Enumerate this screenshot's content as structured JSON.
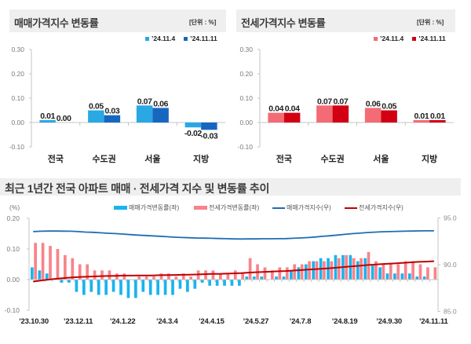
{
  "chart_data": [
    {
      "type": "bar",
      "title": "매매가격지수 변동률",
      "unit_label": "[단위 : %]",
      "categories": [
        "전국",
        "수도권",
        "서울",
        "지방"
      ],
      "series": [
        {
          "name": "’24.11.4",
          "color": "#29a8e4",
          "values": [
            0.01,
            0.05,
            0.07,
            -0.02
          ],
          "data_labels": [
            "0.01",
            "0.05",
            "0.07",
            "-0.02"
          ]
        },
        {
          "name": "’24.11.11",
          "color": "#1767c1",
          "values": [
            0.0,
            0.03,
            0.06,
            -0.03
          ],
          "data_labels": [
            "0.00",
            "0.03",
            "0.06",
            "-0.03"
          ]
        }
      ],
      "xlabel": "",
      "ylabel": "",
      "ylim": [
        -0.1,
        0.3
      ],
      "yticks": [
        0.3,
        0.2,
        0.1,
        0.0,
        -0.1
      ],
      "ytick_labels": [
        "0.30",
        "0.20",
        "0.10",
        "0.00",
        "-0.10"
      ],
      "grid": false,
      "legend": "top-right"
    },
    {
      "type": "bar",
      "title": "전세가격지수 변동률",
      "unit_label": "[단위 : %]",
      "categories": [
        "전국",
        "수도권",
        "서울",
        "지방"
      ],
      "series": [
        {
          "name": "’24.11.4",
          "color": "#f36b74",
          "values": [
            0.04,
            0.07,
            0.06,
            0.01
          ],
          "data_labels": [
            "0.04",
            "0.07",
            "0.06",
            "0.01"
          ]
        },
        {
          "name": "’24.11.11",
          "color": "#d20012",
          "values": [
            0.04,
            0.07,
            0.05,
            0.01
          ],
          "data_labels": [
            "0.04",
            "0.07",
            "0.05",
            "0.01"
          ]
        }
      ],
      "xlabel": "",
      "ylabel": "",
      "ylim": [
        -0.1,
        0.3
      ],
      "yticks": [
        0.3,
        0.2,
        0.1,
        0.0,
        -0.1
      ],
      "ytick_labels": [
        "0.30",
        "0.20",
        "0.10",
        "0.00",
        "-0.10"
      ],
      "grid": false,
      "legend": "top-right"
    },
    {
      "type": "bar+line",
      "title": "최근 1년간 전국 아파트 매매 · 전세가격 지수 및 변동률 추이",
      "y_unit_label": "(%)",
      "xlabel": "",
      "x_tick_labels": [
        "’23.10.30",
        "’23.12.11",
        "’24.1.22",
        "’24.3.4",
        "’24.4.15",
        "’24.5.27",
        "’24.7.8",
        "’24.8.19",
        "’24.9.30",
        "’24.11.11"
      ],
      "x_tick_index": [
        0,
        6,
        12,
        18,
        24,
        30,
        36,
        42,
        48,
        54
      ],
      "ylim_left": [
        -0.1,
        0.2
      ],
      "yticks_left": [
        0.2,
        0.1,
        0.0,
        -0.1
      ],
      "ytick_labels_left": [
        "0.20",
        "0.10",
        "0.00",
        "-0.10"
      ],
      "ylim_right": [
        85.0,
        95.0
      ],
      "yticks_right": [
        95.0,
        90.0,
        85.0
      ],
      "ytick_labels_right": [
        "95.0",
        "90.0",
        "85.0"
      ],
      "grid": false,
      "legend": "top-center",
      "series": [
        {
          "name": "매매가격변동률(좌)",
          "kind": "bar",
          "axis": "left",
          "color": "#19b3ef",
          "values": [
            0.04,
            0.03,
            0.02,
            0.0,
            -0.01,
            -0.01,
            -0.04,
            -0.05,
            -0.04,
            -0.05,
            -0.05,
            -0.04,
            -0.05,
            -0.06,
            -0.06,
            -0.04,
            -0.05,
            -0.05,
            -0.05,
            -0.05,
            -0.03,
            -0.04,
            -0.03,
            -0.01,
            -0.02,
            -0.02,
            -0.02,
            -0.02,
            -0.02,
            0.01,
            0.01,
            0.01,
            0.0,
            0.01,
            0.01,
            0.03,
            0.04,
            0.05,
            0.06,
            0.07,
            0.07,
            0.08,
            0.08,
            0.08,
            0.06,
            0.07,
            0.05,
            0.04,
            0.02,
            0.02,
            0.02,
            0.02,
            0.01,
            0.01,
            0.0
          ]
        },
        {
          "name": "전세가격변동률(좌)",
          "kind": "bar",
          "axis": "left",
          "color": "#f8838a",
          "values": [
            0.12,
            0.12,
            0.11,
            0.1,
            0.08,
            0.07,
            0.05,
            0.05,
            0.03,
            0.03,
            0.03,
            0.02,
            0.02,
            0.0,
            0.01,
            0.01,
            0.01,
            0.02,
            0.02,
            0.01,
            0.02,
            0.01,
            0.03,
            0.03,
            0.03,
            0.02,
            0.02,
            0.03,
            0.02,
            0.07,
            0.05,
            0.04,
            0.03,
            0.04,
            0.04,
            0.05,
            0.05,
            0.06,
            0.06,
            0.06,
            0.06,
            0.07,
            0.08,
            0.07,
            0.07,
            0.09,
            0.06,
            0.05,
            0.05,
            0.05,
            0.06,
            0.06,
            0.05,
            0.04,
            0.04
          ]
        },
        {
          "name": "매매가격지수(우)",
          "kind": "line",
          "axis": "right",
          "color": "#1f6db3",
          "values": [
            93.55,
            93.58,
            93.6,
            93.6,
            93.59,
            93.58,
            93.54,
            93.49,
            93.46,
            93.41,
            93.36,
            93.33,
            93.28,
            93.22,
            93.17,
            93.13,
            93.08,
            93.04,
            92.99,
            92.94,
            92.91,
            92.88,
            92.85,
            92.84,
            92.82,
            92.8,
            92.78,
            92.76,
            92.75,
            92.76,
            92.76,
            92.77,
            92.77,
            92.78,
            92.79,
            92.82,
            92.86,
            92.9,
            92.96,
            93.03,
            93.09,
            93.17,
            93.24,
            93.32,
            93.37,
            93.44,
            93.48,
            93.52,
            93.54,
            93.56,
            93.58,
            93.6,
            93.61,
            93.62,
            93.62
          ]
        },
        {
          "name": "전세가격지수(우)",
          "kind": "line",
          "axis": "right",
          "color": "#c00000",
          "values": [
            88.2,
            88.31,
            88.4,
            88.49,
            88.56,
            88.62,
            88.67,
            88.71,
            88.74,
            88.77,
            88.79,
            88.81,
            88.83,
            88.83,
            88.84,
            88.85,
            88.85,
            88.87,
            88.89,
            88.9,
            88.92,
            88.93,
            88.95,
            88.98,
            89.01,
            89.02,
            89.04,
            89.07,
            89.09,
            89.15,
            89.19,
            89.23,
            89.25,
            89.29,
            89.32,
            89.37,
            89.41,
            89.47,
            89.52,
            89.57,
            89.62,
            89.69,
            89.76,
            89.82,
            89.88,
            89.96,
            90.01,
            90.06,
            90.1,
            90.15,
            90.2,
            90.25,
            90.3,
            90.33,
            90.37
          ]
        }
      ]
    }
  ]
}
